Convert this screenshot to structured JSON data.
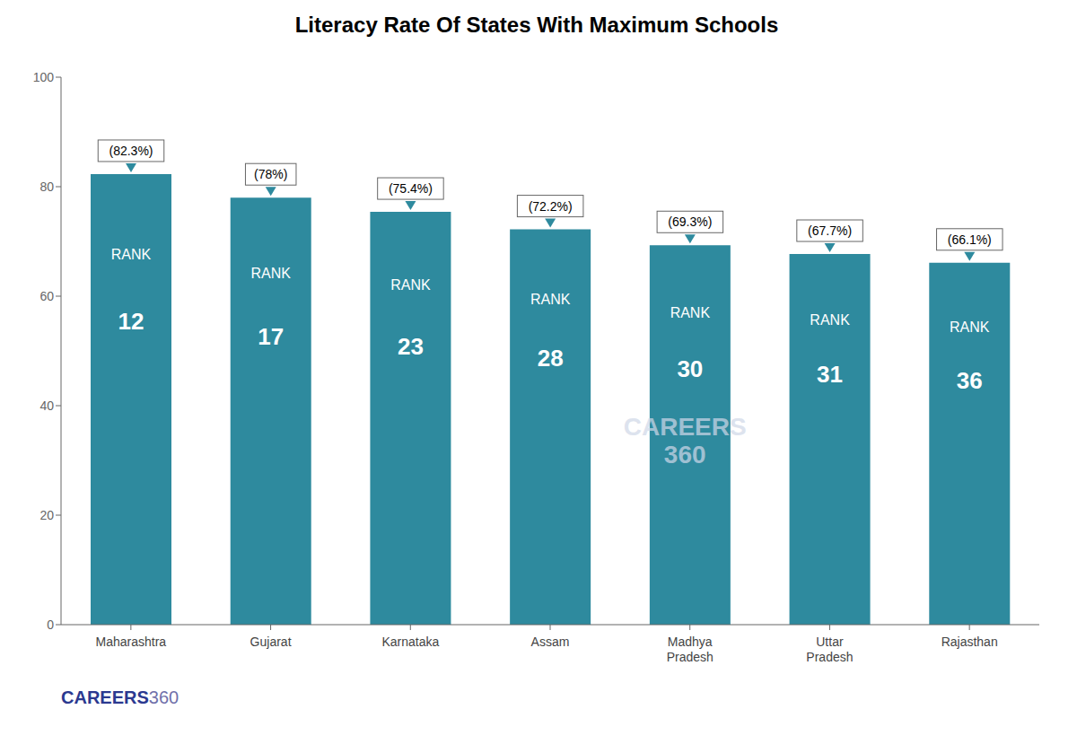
{
  "chart_data": {
    "type": "bar",
    "title": "Literacy Rate Of States With Maximum Schools",
    "categories": [
      "Maharashtra",
      "Gujarat",
      "Karnataka",
      "Assam",
      "Madhya\nPradesh",
      "Uttar\nPradesh",
      "Rajasthan"
    ],
    "values": [
      82.3,
      78.0,
      75.4,
      72.2,
      69.3,
      67.7,
      66.1
    ],
    "data_labels": true,
    "value_labels": [
      "(82.3%)",
      "(78%)",
      "(75.4%)",
      "(72.2%)",
      "(69.3%)",
      "(67.7%)",
      "(66.1%)"
    ],
    "ranks": [
      12,
      17,
      23,
      28,
      30,
      31,
      36
    ],
    "rank_label": "RANK",
    "annotations": [
      "CAREERS\n360",
      "CAREERS",
      "360"
    ],
    "color": "#2e8a9e",
    "ylim": [
      0,
      100
    ],
    "yticks": [
      0,
      20,
      40,
      60,
      80,
      100
    ],
    "grid": false
  }
}
